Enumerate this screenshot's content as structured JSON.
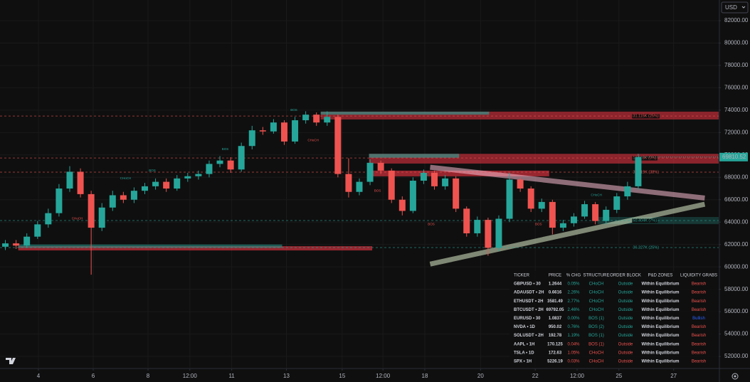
{
  "chart_data": {
    "type": "candlestick",
    "currency": "USD",
    "up_color": "#26a69a",
    "down_color": "#ef5350",
    "open": [
      61800,
      62100,
      61900,
      62700,
      63800,
      64800,
      67000,
      68500,
      66500,
      63500,
      65300,
      66400,
      66000,
      66800,
      67200,
      67600,
      67000,
      67900,
      68100,
      68300,
      69200,
      69500,
      68700,
      70800,
      72200,
      72100,
      72900,
      71200,
      73100,
      73600,
      72900,
      73400,
      68300,
      66700,
      67600,
      69300,
      68600,
      66000,
      65000,
      67700,
      68400,
      67200,
      67900,
      65200,
      63000,
      64200,
      61700,
      64300,
      67800,
      67000,
      65200,
      65800,
      63500,
      63900,
      64500,
      65600,
      64100,
      65100,
      66300,
      67200
    ],
    "high": [
      62400,
      62400,
      63000,
      64100,
      65200,
      67400,
      69000,
      68800,
      66800,
      65700,
      66800,
      66700,
      67100,
      67500,
      67900,
      67900,
      68200,
      68400,
      68600,
      69500,
      69900,
      69800,
      71100,
      72600,
      72500,
      73200,
      73100,
      73400,
      73900,
      73800,
      73900,
      73600,
      69700,
      67900,
      69600,
      69500,
      68800,
      66300,
      68000,
      68700,
      68600,
      68200,
      68100,
      65400,
      64500,
      64400,
      64600,
      68400,
      68000,
      67200,
      66100,
      66000,
      64200,
      64800,
      65900,
      65800,
      65400,
      66600,
      67600,
      70100
    ],
    "low": [
      61500,
      61600,
      61700,
      62500,
      63500,
      64500,
      66700,
      66200,
      59300,
      63200,
      65000,
      65700,
      65700,
      66500,
      66900,
      66700,
      66800,
      67600,
      67800,
      68000,
      68900,
      68400,
      68500,
      70500,
      71800,
      71900,
      70900,
      71000,
      72800,
      72600,
      72600,
      68000,
      66200,
      66400,
      67300,
      68300,
      65700,
      64600,
      64800,
      67400,
      66900,
      66900,
      64900,
      62700,
      62700,
      61000,
      61400,
      64000,
      66700,
      64900,
      64900,
      62900,
      63200,
      63600,
      64300,
      63800,
      63800,
      64800,
      66000,
      66900
    ],
    "close": [
      62100,
      61900,
      62700,
      63800,
      64800,
      67000,
      68500,
      66500,
      63500,
      65300,
      66400,
      66000,
      66800,
      67200,
      67600,
      67000,
      67900,
      68100,
      68300,
      69200,
      69500,
      68700,
      70800,
      72200,
      72100,
      72900,
      71200,
      73100,
      73600,
      72900,
      73400,
      68300,
      66700,
      67600,
      69300,
      68600,
      66000,
      65000,
      67700,
      68400,
      67200,
      67900,
      65200,
      63000,
      64200,
      61700,
      64300,
      67800,
      67000,
      65200,
      65800,
      63500,
      63900,
      64500,
      65600,
      64100,
      65100,
      66300,
      67200,
      69810.52
    ],
    "xlim": [
      0,
      67
    ],
    "ylim": [
      50923,
      83843
    ],
    "xticks": [
      {
        "value": 3.58,
        "label": "4"
      },
      {
        "value": 8.69,
        "label": "6"
      },
      {
        "value": 13.8,
        "label": "8"
      },
      {
        "value": 17.7,
        "label": "12:00"
      },
      {
        "value": 21.6,
        "label": "11"
      },
      {
        "value": 26.7,
        "label": "13"
      },
      {
        "value": 31.9,
        "label": "15"
      },
      {
        "value": 35.7,
        "label": "12:00"
      },
      {
        "value": 39.6,
        "label": "18"
      },
      {
        "value": 44.8,
        "label": "20"
      },
      {
        "value": 49.9,
        "label": "22"
      },
      {
        "value": 53.8,
        "label": "12:00"
      },
      {
        "value": 57.7,
        "label": "25"
      },
      {
        "value": 62.8,
        "label": "27"
      }
    ],
    "yticks": [
      {
        "value": 52000,
        "label": "52000.00"
      },
      {
        "value": 54000,
        "label": "54000.00"
      },
      {
        "value": 56000,
        "label": "56000.00"
      },
      {
        "value": 58000,
        "label": "58000.00"
      },
      {
        "value": 60000,
        "label": "60000.00"
      },
      {
        "value": 62000,
        "label": "62000.00"
      },
      {
        "value": 64000,
        "label": "64000.00"
      },
      {
        "value": 66000,
        "label": "66000.00"
      },
      {
        "value": 68000,
        "label": "68000.00"
      },
      {
        "value": 70000,
        "label": "70000.00"
      },
      {
        "value": 72000,
        "label": "72000.00"
      },
      {
        "value": 74000,
        "label": "74000.00"
      },
      {
        "value": 76000,
        "label": "76000.00"
      },
      {
        "value": 78000,
        "label": "78000.00"
      },
      {
        "value": 80000,
        "label": "80000.00"
      },
      {
        "value": 82000,
        "label": "82000.00"
      }
    ],
    "grid": true,
    "zones": [
      {
        "x0": 29.9,
        "x1": 67,
        "top": 73870,
        "bottom": 73170,
        "color": "rgba(242,54,69,0.55)"
      },
      {
        "x0": 29.9,
        "x1": 45.6,
        "top": 73870,
        "bottom": 73600,
        "color": "rgba(38,166,154,0.6)"
      },
      {
        "x0": 34.4,
        "x1": 67,
        "top": 70100,
        "bottom": 69230,
        "color": "rgba(242,54,69,0.55)"
      },
      {
        "x0": 34.4,
        "x1": 42.8,
        "top": 70100,
        "bottom": 69750,
        "color": "rgba(38,166,154,0.6)"
      },
      {
        "x0": 34.4,
        "x1": 51.2,
        "top": 68600,
        "bottom": 68090,
        "color": "rgba(242,54,69,0.6)"
      },
      {
        "x0": 1.7,
        "x1": 34.7,
        "top": 61850,
        "bottom": 61470,
        "color": "rgba(242,54,69,0.6)"
      },
      {
        "x0": 1.7,
        "x1": 26.3,
        "top": 62000,
        "bottom": 61700,
        "color": "rgba(38,166,154,0.5)"
      },
      {
        "x0": 55.7,
        "x1": 67,
        "top": 64460,
        "bottom": 63820,
        "color": "rgba(38,166,154,0.25)"
      }
    ],
    "trendlines": [
      {
        "x0": 40.1,
        "y0": 68900,
        "x1": 65.7,
        "y1": 66150,
        "color": "rgba(248,187,208,0.55)"
      },
      {
        "x0": 40.1,
        "y0": 60250,
        "x1": 65.7,
        "y1": 65600,
        "color": "rgba(220,237,200,0.55)"
      }
    ],
    "levels": [
      {
        "text": "31.115K (25%)",
        "x": 59,
        "y": 73480,
        "color": "#ef5350"
      },
      {
        "text": "13.118K (0%)",
        "x": 59,
        "y": 69730,
        "color": "#ef5350"
      },
      {
        "text": "36.919K (38%)",
        "x": 59,
        "y": 68460,
        "color": "#ef5350"
      },
      {
        "text": "50.404K (7%)",
        "x": 59,
        "y": 64140,
        "color": "#26a69a"
      },
      {
        "text": "36.327K (25%)",
        "x": 59,
        "y": 61730,
        "color": "#26a69a"
      }
    ],
    "annotations": [
      {
        "text": "CHoCH",
        "x": 7.2,
        "y": 64300,
        "color": "#ef5350"
      },
      {
        "text": "CHoCH",
        "x": 11.7,
        "y": 67900,
        "color": "#26a69a"
      },
      {
        "text": "BOS",
        "x": 14.2,
        "y": 68600,
        "color": "#26a69a"
      },
      {
        "text": "BOS",
        "x": 21.0,
        "y": 70500,
        "color": "#26a69a"
      },
      {
        "text": "BOS",
        "x": 27.4,
        "y": 74000,
        "color": "#26a69a"
      },
      {
        "text": "CHoCH",
        "x": 29.2,
        "y": 71300,
        "color": "#ef5350"
      },
      {
        "text": "BOS",
        "x": 35.2,
        "y": 66800,
        "color": "#ef5350"
      },
      {
        "text": "BOS",
        "x": 40.2,
        "y": 63800,
        "color": "#ef5350"
      },
      {
        "text": "BOS",
        "x": 50.2,
        "y": 63800,
        "color": "#ef5350"
      },
      {
        "text": "CHoCH",
        "x": 55.6,
        "y": 66400,
        "color": "#26a69a"
      }
    ],
    "table": {
      "columns": [
        "TICKER",
        "PRICE",
        "% CHG",
        "STRUCTURE",
        "ORDER BLOCK",
        "P&D ZONES",
        "LIQUIDITY GRABS"
      ],
      "rows": [
        [
          "GBPUSD • 30",
          "1.2644",
          "0.05%",
          "CHoCH",
          "Outside",
          "Within Equilibrium",
          "Bearish"
        ],
        [
          "ADAUSDT • 2H",
          "0.6616",
          "2.26%",
          "CHoCH",
          "Outside",
          "Within Equilibrium",
          "Bearish"
        ],
        [
          "ETHUSDT • 2H",
          "3581.49",
          "2.77%",
          "CHoCH",
          "Outside",
          "Within Equilibrium",
          "Bearish"
        ],
        [
          "BTCUSDT • 2H",
          "69792.05",
          "2.46%",
          "CHoCH",
          "Outside",
          "Within Equilibrium",
          "Bearish"
        ],
        [
          "EURUSD • 30",
          "1.0837",
          "0.00%",
          "BOS (1)",
          "Outside",
          "Within Equilibrium",
          "Bullish"
        ],
        [
          "NVDA • 1D",
          "950.02",
          "0.76%",
          "BOS (2)",
          "Outside",
          "Within Equilibrium",
          "Bearish"
        ],
        [
          "SOLUSDT • 2H",
          "192.78",
          "1.19%",
          "BOS (1)",
          "Outside",
          "Within Equilibrium",
          "Bearish"
        ],
        [
          "AAPL • 1H",
          "170.125",
          "0.04%",
          "BOS (1)",
          "Outside",
          "Within Equilibrium",
          "Bearish"
        ],
        [
          "TSLA • 1D",
          "172.63",
          "1.05%",
          "CHoCH",
          "Outside",
          "Within Equilibrium",
          "Bearish"
        ],
        [
          "SPX • 1H",
          "5226.19",
          "0.03%",
          "CHoCH",
          "Outside",
          "Within Equilibrium",
          "Bearish"
        ]
      ],
      "row_colors": [
        "#26a69a",
        "#26a69a",
        "#26a69a",
        "#26a69a",
        "#26a69a",
        "#26a69a",
        "#26a69a",
        "#ef5350",
        "#ef5350",
        "#ef5350"
      ],
      "liquidity_colors": [
        "#ef5350",
        "#ef5350",
        "#ef5350",
        "#ef5350",
        "#2962ff",
        "#ef5350",
        "#ef5350",
        "#ef5350",
        "#ef5350",
        "#ef5350"
      ]
    }
  }
}
